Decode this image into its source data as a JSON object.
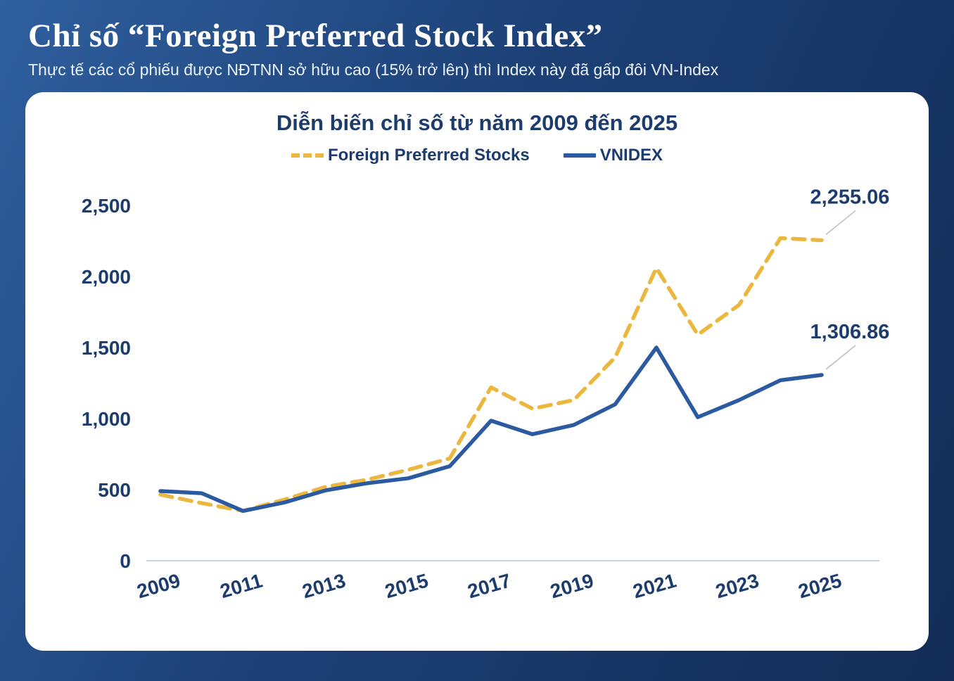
{
  "page": {
    "title": "Chỉ số “Foreign Preferred Stock Index”",
    "subtitle": "Thực tế các cổ phiếu được NĐTNN sở hữu cao (15% trở lên) thì Index này đã gấp đôi VN-Index"
  },
  "colors": {
    "background_top": "#2f5f9e",
    "background_bottom": "#122c55",
    "card": "#ffffff",
    "text_navy": "#1d3c6e",
    "foreign_line": "#ecb73e",
    "vnindex_line": "#2b5aa0",
    "axis_line": "#c9d2de",
    "leader_line": "#b6bdc8"
  },
  "chart_data": {
    "type": "line",
    "title": "Diễn biến chỉ số từ năm 2009 đến 2025",
    "x": [
      2009,
      2010,
      2011,
      2012,
      2013,
      2014,
      2015,
      2016,
      2017,
      2018,
      2019,
      2020,
      2021,
      2022,
      2023,
      2024,
      2025
    ],
    "x_tick_years": [
      2009,
      2011,
      2013,
      2015,
      2017,
      2019,
      2021,
      2023,
      2025
    ],
    "x_tick_labels": [
      "2009",
      "2011",
      "2013",
      "2015",
      "2017",
      "2019",
      "2021",
      "2023",
      "2025"
    ],
    "y_tick_values": [
      0,
      500,
      1000,
      1500,
      2000,
      2500
    ],
    "y_tick_labels": [
      "0",
      "500",
      "1,000",
      "1,500",
      "2,000",
      "2,500"
    ],
    "ylim": [
      0,
      2500
    ],
    "grid": false,
    "legend_position": "top",
    "series": [
      {
        "name": "Foreign Preferred Stocks",
        "style": "dashed",
        "color": "#ecb73e",
        "values": [
          465,
          405,
          350,
          430,
          520,
          570,
          640,
          720,
          1220,
          1070,
          1130,
          1430,
          2060,
          1590,
          1800,
          2270,
          2255.06
        ],
        "end_label": "2,255.06"
      },
      {
        "name": "VNIDEX",
        "style": "solid",
        "color": "#2b5aa0",
        "values": [
          490,
          475,
          350,
          410,
          495,
          545,
          580,
          665,
          985,
          890,
          955,
          1100,
          1500,
          1010,
          1130,
          1270,
          1306.86
        ],
        "end_label": "1,306.86"
      }
    ]
  }
}
